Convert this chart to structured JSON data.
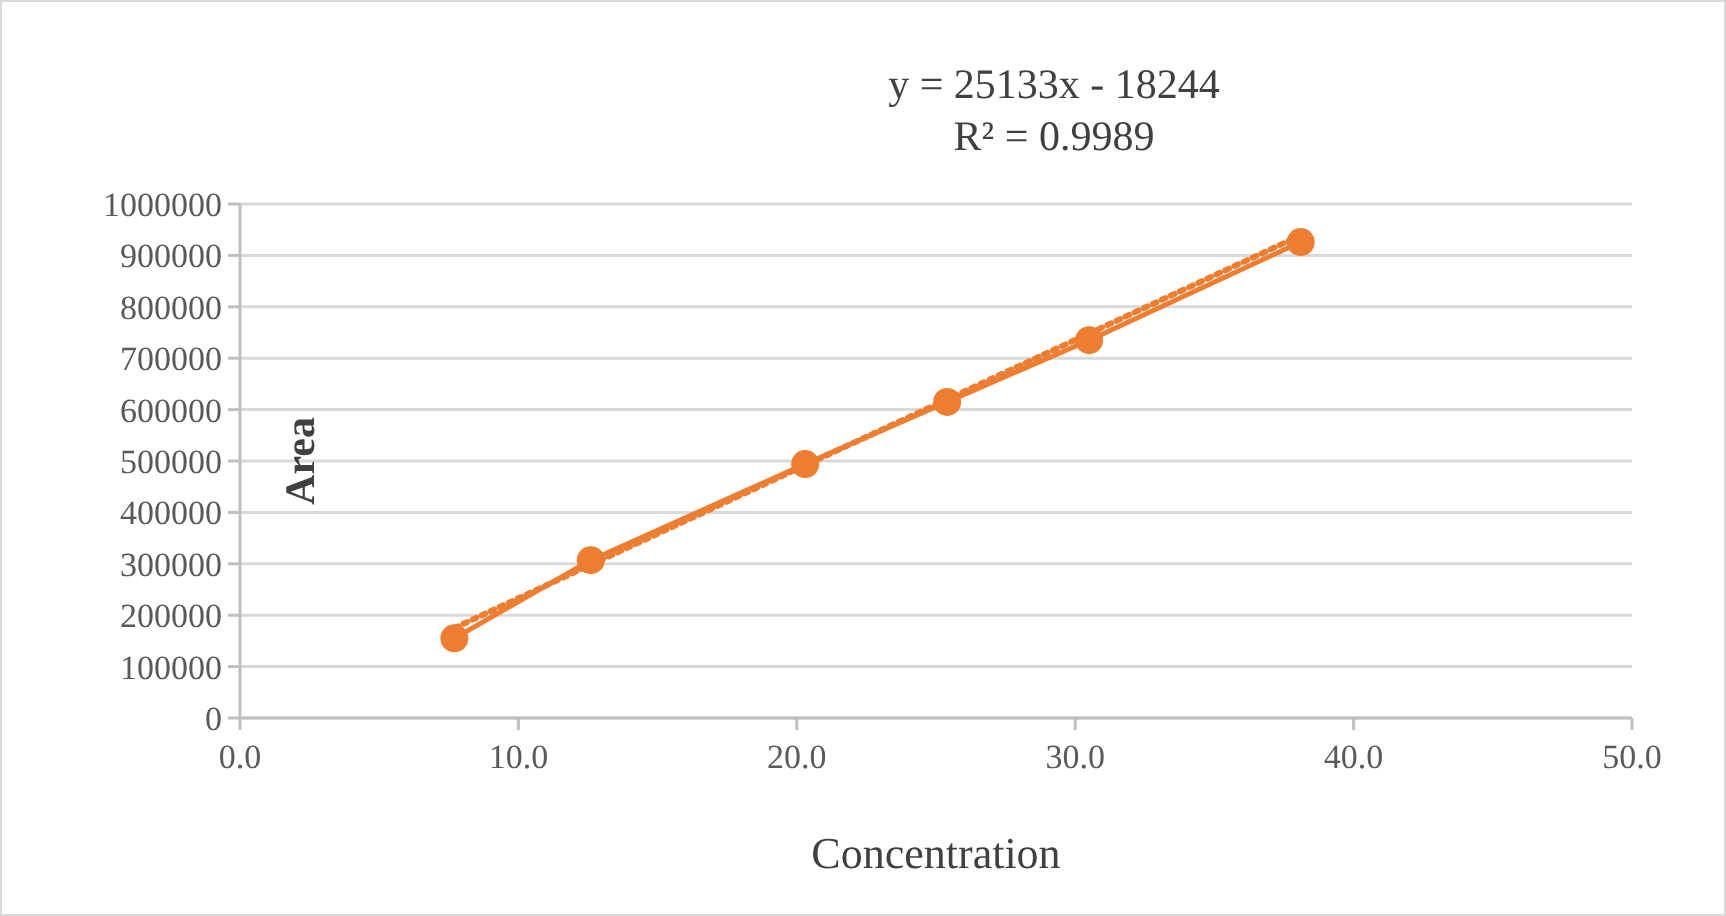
{
  "chart_data": {
    "type": "line",
    "xlabel": "Concentration",
    "ylabel": "Area",
    "annotations": [
      "y = 25133x - 18244",
      "R² = 0.9989"
    ],
    "xlim": [
      0,
      50
    ],
    "xticks": [
      {
        "value": 0,
        "label": "0.0"
      },
      {
        "value": 10,
        "label": "10.0"
      },
      {
        "value": 20,
        "label": "20.0"
      },
      {
        "value": 30,
        "label": "30.0"
      },
      {
        "value": 40,
        "label": "40.0"
      },
      {
        "value": 50,
        "label": "50.0"
      }
    ],
    "ylim": [
      0,
      1000000
    ],
    "yticks": [
      0,
      100000,
      200000,
      300000,
      400000,
      500000,
      600000,
      700000,
      800000,
      900000,
      1000000
    ],
    "grid": "y",
    "series": [
      {
        "type": "line",
        "color": "#ed7d31",
        "line_style": "dotted",
        "marker": "none",
        "x": [
          7.7,
          38.1
        ],
        "values": [
          175000,
          939000
        ]
      },
      {
        "color": "#ed7d31",
        "line_style": "solid",
        "marker": "circle",
        "x": [
          7.7,
          12.6,
          20.3,
          25.4,
          30.5,
          38.1
        ],
        "values": [
          155000,
          307000,
          494000,
          615000,
          735000,
          926000
        ]
      }
    ]
  }
}
